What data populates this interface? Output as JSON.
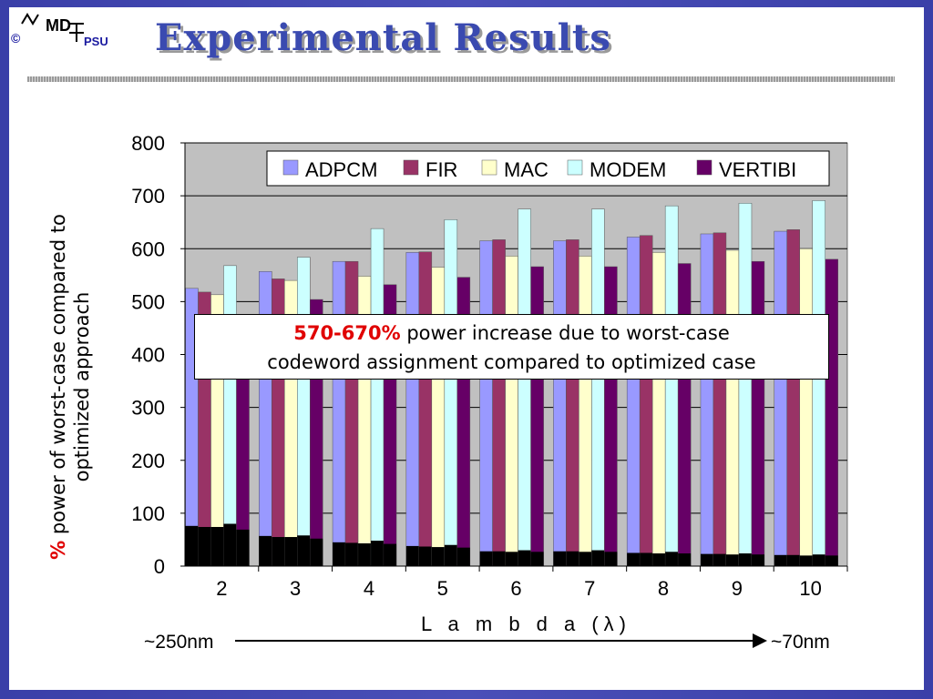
{
  "header": {
    "title": "Experimental Results",
    "logo": {
      "copyright": "©",
      "org": "PSU",
      "mark": "MD"
    }
  },
  "callout": {
    "highlight": "570-670%",
    "text_line1": " power increase due to worst-case",
    "text_line2": "codeword assignment compared to optimized case"
  },
  "technology": {
    "left": "~250nm",
    "right": "~70nm"
  },
  "ylabel": {
    "pct": "%",
    "rest": " power of worst-case compared to optimized approach"
  },
  "chart_data": {
    "type": "bar",
    "xlabel": "L a m b d a (λ)",
    "ylabel": "% power of worst-case compared to optimized approach",
    "categories": [
      "2",
      "3",
      "4",
      "5",
      "6",
      "7",
      "8",
      "9",
      "10"
    ],
    "ylim": [
      0,
      800
    ],
    "yticks": [
      0,
      100,
      200,
      300,
      400,
      500,
      600,
      700,
      800
    ],
    "grid": true,
    "legend_position": "top-right",
    "series": [
      {
        "name": "ADPCM",
        "color": "#9999ff",
        "values": [
          525,
          557,
          576,
          593,
          615,
          615,
          622,
          628,
          633
        ]
      },
      {
        "name": "FIR",
        "color": "#993366",
        "values": [
          518,
          543,
          576,
          594,
          617,
          617,
          625,
          630,
          636
        ]
      },
      {
        "name": "MAC",
        "color": "#ffffcc",
        "values": [
          513,
          540,
          548,
          565,
          586,
          586,
          593,
          597,
          600
        ]
      },
      {
        "name": "MODEM",
        "color": "#ccffff",
        "values": [
          568,
          584,
          638,
          655,
          675,
          675,
          681,
          686,
          691
        ]
      },
      {
        "name": "VERTIBI",
        "color": "#660066",
        "values": [
          476,
          504,
          532,
          546,
          566,
          566,
          572,
          576,
          580
        ]
      }
    ],
    "base_values": [
      [
        76,
        57,
        45,
        38,
        28,
        28,
        25,
        23,
        21
      ],
      [
        74,
        55,
        44,
        37,
        28,
        28,
        25,
        23,
        21
      ],
      [
        74,
        55,
        43,
        36,
        27,
        27,
        24,
        22,
        20
      ],
      [
        80,
        58,
        48,
        40,
        30,
        30,
        27,
        24,
        22
      ],
      [
        69,
        52,
        42,
        35,
        27,
        27,
        24,
        22,
        20
      ]
    ],
    "base_color": "#000000"
  },
  "colors": {
    "plot_bg": "#c0c0c0",
    "accent_red": "#e00000",
    "title_blue": "#3a4ab0"
  }
}
